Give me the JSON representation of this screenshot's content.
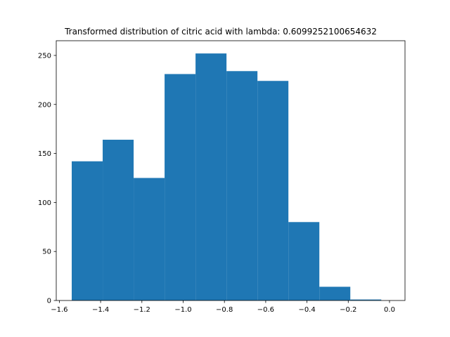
{
  "chart_data": {
    "type": "bar",
    "title": "Transformed distribution of citric acid with lambda: 0.6099252100654632",
    "xlabel": "",
    "ylabel": "",
    "bin_edges": [
      -1.54,
      -1.39,
      -1.24,
      -1.09,
      -0.94,
      -0.79,
      -0.64,
      -0.49,
      -0.34,
      -0.19,
      -0.04
    ],
    "values": [
      142,
      164,
      125,
      231,
      252,
      234,
      224,
      80,
      14,
      1
    ],
    "xlim": [
      -1.615,
      0.075
    ],
    "ylim": [
      0,
      265
    ],
    "xticks": [
      {
        "value": -1.6,
        "label": "−1.6"
      },
      {
        "value": -1.4,
        "label": "−1.4"
      },
      {
        "value": -1.2,
        "label": "−1.2"
      },
      {
        "value": -1.0,
        "label": "−1.0"
      },
      {
        "value": -0.8,
        "label": "−0.8"
      },
      {
        "value": -0.6,
        "label": "−0.6"
      },
      {
        "value": -0.4,
        "label": "−0.4"
      },
      {
        "value": -0.2,
        "label": "−0.2"
      },
      {
        "value": 0.0,
        "label": "0.0"
      }
    ],
    "yticks": [
      {
        "value": 0,
        "label": "0"
      },
      {
        "value": 50,
        "label": "50"
      },
      {
        "value": 100,
        "label": "100"
      },
      {
        "value": 150,
        "label": "150"
      },
      {
        "value": 200,
        "label": "200"
      },
      {
        "value": 250,
        "label": "250"
      }
    ],
    "bar_color": "#1f77b4",
    "grid": false,
    "legend": "none"
  }
}
